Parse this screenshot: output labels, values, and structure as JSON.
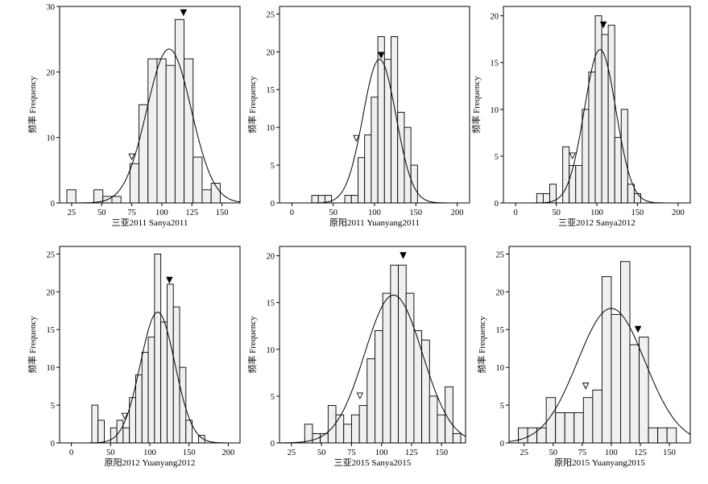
{
  "chart_data": [
    {
      "type": "bar",
      "xlabel": "三亚2011 Sanya2011",
      "ylabel": "频率 Frequency",
      "xlim": [
        15,
        165
      ],
      "ylim": [
        0,
        30
      ],
      "xticks": [
        25,
        50,
        75,
        100,
        125,
        150
      ],
      "yticks": [
        0,
        10,
        20,
        30
      ],
      "bin_width": 7.5,
      "bins": [
        [
          21,
          2
        ],
        [
          43.5,
          2
        ],
        [
          51,
          1
        ],
        [
          58.5,
          1
        ],
        [
          73.5,
          6
        ],
        [
          81,
          15
        ],
        [
          88.5,
          22
        ],
        [
          96,
          22
        ],
        [
          103.5,
          21
        ],
        [
          111,
          28
        ],
        [
          118.5,
          22
        ],
        [
          126,
          7
        ],
        [
          133.5,
          2
        ],
        [
          141,
          3
        ]
      ],
      "curve": {
        "mean": 106,
        "sd": 18.5,
        "peak": 23.5
      },
      "markers": {
        "open": [
          75,
          7
        ],
        "filled": [
          118,
          29
        ]
      }
    },
    {
      "type": "bar",
      "xlabel": "原阳2011 Yuanyang2011",
      "ylabel": "频率 Frequency",
      "xlim": [
        -15,
        215
      ],
      "ylim": [
        0,
        26
      ],
      "xticks": [
        0,
        50,
        100,
        150,
        200
      ],
      "yticks": [
        0,
        5,
        10,
        15,
        20,
        25
      ],
      "bin_width": 8,
      "bins": [
        [
          24,
          1
        ],
        [
          32,
          1
        ],
        [
          40,
          1
        ],
        [
          64,
          1
        ],
        [
          72,
          1
        ],
        [
          80,
          6
        ],
        [
          88,
          9
        ],
        [
          96,
          14
        ],
        [
          104,
          22
        ],
        [
          112,
          19
        ],
        [
          120,
          22
        ],
        [
          128,
          12
        ],
        [
          136,
          10
        ],
        [
          144,
          5
        ]
      ],
      "curve": {
        "mean": 106,
        "sd": 20,
        "peak": 19
      },
      "markers": {
        "open": [
          78,
          8.5
        ],
        "filled": [
          108,
          19.5
        ]
      }
    },
    {
      "type": "bar",
      "xlabel": "三亚2012 Sanya2012",
      "ylabel": "频率 Frequency",
      "xlim": [
        -15,
        215
      ],
      "ylim": [
        0,
        21
      ],
      "xticks": [
        0,
        50,
        100,
        150,
        200
      ],
      "yticks": [
        0,
        5,
        10,
        15,
        20
      ],
      "bin_width": 8,
      "bins": [
        [
          26,
          1
        ],
        [
          34,
          1
        ],
        [
          42,
          2
        ],
        [
          58,
          6
        ],
        [
          66,
          4
        ],
        [
          74,
          4
        ],
        [
          82,
          10
        ],
        [
          90,
          14
        ],
        [
          98,
          20
        ],
        [
          106,
          18
        ],
        [
          114,
          19
        ],
        [
          122,
          7
        ],
        [
          130,
          10
        ],
        [
          138,
          2
        ],
        [
          146,
          1
        ]
      ],
      "curve": {
        "mean": 104,
        "sd": 19.5,
        "peak": 16.4
      },
      "markers": {
        "open": [
          70,
          5
        ],
        "filled": [
          108,
          19
        ]
      }
    },
    {
      "type": "bar",
      "xlabel": "原阳2012 Yuanyang2012",
      "ylabel": "频率 Frequency",
      "xlim": [
        -15,
        215
      ],
      "ylim": [
        0,
        26
      ],
      "xticks": [
        0,
        50,
        100,
        150,
        200
      ],
      "yticks": [
        0,
        5,
        10,
        15,
        20,
        25
      ],
      "bin_width": 8,
      "bins": [
        [
          26,
          5
        ],
        [
          34,
          3
        ],
        [
          50,
          2
        ],
        [
          58,
          3
        ],
        [
          66,
          2
        ],
        [
          74,
          6
        ],
        [
          82,
          9
        ],
        [
          90,
          12
        ],
        [
          98,
          14
        ],
        [
          106,
          25
        ],
        [
          114,
          16
        ],
        [
          122,
          21
        ],
        [
          130,
          18
        ],
        [
          138,
          10
        ],
        [
          146,
          3
        ],
        [
          162,
          1
        ]
      ],
      "curve": {
        "mean": 110,
        "sd": 22,
        "peak": 17.3
      },
      "markers": {
        "open": [
          68,
          3.5
        ],
        "filled": [
          125,
          21.5
        ]
      }
    },
    {
      "type": "bar",
      "xlabel": "三亚2015 Sanya2015",
      "ylabel": "频率 Frequency",
      "xlim": [
        15,
        170
      ],
      "ylim": [
        0,
        21
      ],
      "xticks": [
        25,
        50,
        75,
        100,
        125,
        150
      ],
      "yticks": [
        0,
        5,
        10,
        15,
        20
      ],
      "bin_width": 6.5,
      "bins": [
        [
          36,
          2
        ],
        [
          42.5,
          1
        ],
        [
          49,
          1
        ],
        [
          55.5,
          4
        ],
        [
          62,
          3
        ],
        [
          68.5,
          2
        ],
        [
          75,
          3
        ],
        [
          81.5,
          4
        ],
        [
          88,
          9
        ],
        [
          94.5,
          12
        ],
        [
          101,
          16
        ],
        [
          107.5,
          19
        ],
        [
          114,
          19
        ],
        [
          120.5,
          16
        ],
        [
          127,
          12
        ],
        [
          133.5,
          11
        ],
        [
          140,
          5
        ],
        [
          146.5,
          3
        ],
        [
          153,
          6
        ],
        [
          159.5,
          1
        ]
      ],
      "curve": {
        "mean": 110,
        "sd": 24,
        "peak": 15.8
      },
      "markers": {
        "open": [
          82,
          5
        ],
        "filled": [
          118,
          20
        ]
      }
    },
    {
      "type": "bar",
      "xlabel": "原阳2015 Yuanyang2015",
      "ylabel": "频率 Frequency",
      "xlim": [
        12,
        168
      ],
      "ylim": [
        0,
        26
      ],
      "xticks": [
        25,
        50,
        75,
        100,
        125,
        150
      ],
      "yticks": [
        0,
        5,
        10,
        15,
        20,
        25
      ],
      "bin_width": 8,
      "bins": [
        [
          20,
          2
        ],
        [
          28,
          2
        ],
        [
          36,
          2
        ],
        [
          44,
          6
        ],
        [
          52,
          4
        ],
        [
          60,
          4
        ],
        [
          68,
          4
        ],
        [
          76,
          6
        ],
        [
          84,
          7
        ],
        [
          92,
          22
        ],
        [
          100,
          17
        ],
        [
          108,
          24
        ],
        [
          116,
          13
        ],
        [
          124,
          14
        ],
        [
          132,
          2
        ],
        [
          140,
          2
        ],
        [
          148,
          2
        ]
      ],
      "curve": {
        "mean": 100,
        "sd": 29,
        "peak": 17.8
      },
      "markers": {
        "open": [
          78,
          7.5
        ],
        "filled": [
          123,
          15
        ]
      }
    }
  ]
}
